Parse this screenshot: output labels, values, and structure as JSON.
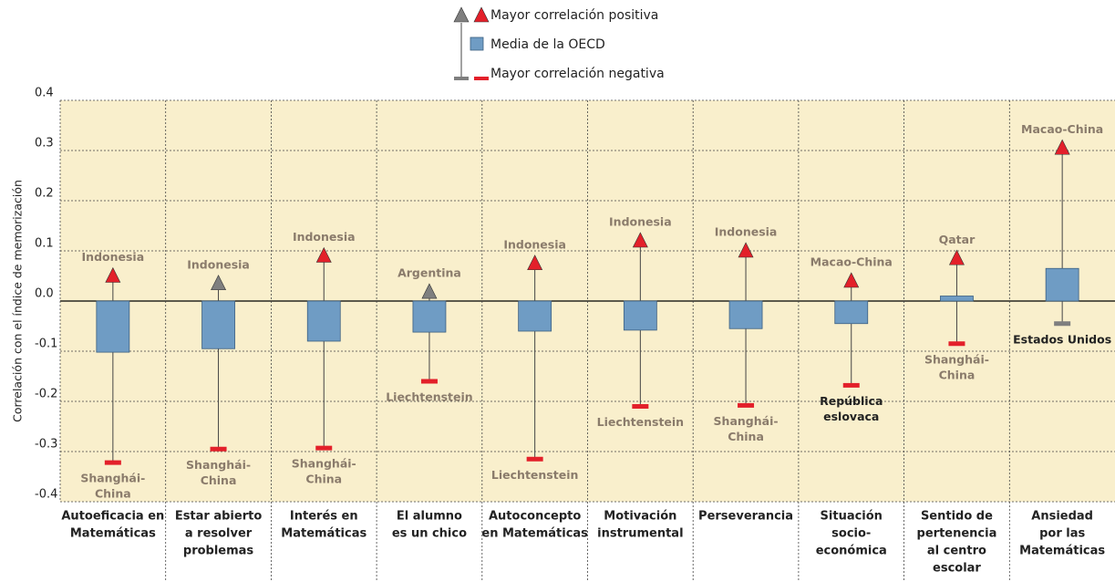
{
  "chart_data": {
    "type": "range",
    "y_label": "Correlación con el índice de memorización",
    "categories": [
      [
        "Autoeficacia en",
        "Matemáticas"
      ],
      [
        "Estar abierto",
        "a resolver",
        "problemas"
      ],
      [
        "Interés en",
        "Matemáticas"
      ],
      [
        "El alumno",
        "es un chico"
      ],
      [
        "Autoconcepto",
        "en Matemáticas"
      ],
      [
        "Motivación",
        "instrumental"
      ],
      [
        "Perseverancia"
      ],
      [
        "Situación",
        "socio-",
        "económica"
      ],
      [
        "Sentido de",
        "pertenencia",
        "al centro",
        "escolar"
      ],
      [
        "Ansiedad",
        "por las",
        "Matemáticas"
      ]
    ],
    "series": [
      {
        "name": "Mayor correlación positiva",
        "values": [
          0.05,
          0.035,
          0.09,
          0.018,
          0.075,
          0.12,
          0.1,
          0.04,
          0.085,
          0.305
        ],
        "colors": [
          "#e3202a",
          "#7f7f7f",
          "#e3202a",
          "#7f7f7f",
          "#e3202a",
          "#e3202a",
          "#e3202a",
          "#e3202a",
          "#e3202a",
          "#e3202a"
        ],
        "labels": [
          [
            "Indonesia"
          ],
          [
            "Indonesia"
          ],
          [
            "Indonesia"
          ],
          [
            "Argentina"
          ],
          [
            "Indonesia"
          ],
          [
            "Indonesia"
          ],
          [
            "Indonesia"
          ],
          [
            "Macao-China"
          ],
          [
            "Qatar"
          ],
          [
            "Macao-China"
          ]
        ]
      },
      {
        "name": "Media de la OECD",
        "color": "#6f9cc4",
        "values": [
          -0.102,
          -0.095,
          -0.08,
          -0.062,
          -0.06,
          -0.058,
          -0.055,
          -0.045,
          0.01,
          0.065
        ]
      },
      {
        "name": "Mayor correlación negativa",
        "values": [
          -0.322,
          -0.295,
          -0.293,
          -0.16,
          -0.315,
          -0.21,
          -0.208,
          -0.168,
          -0.085,
          -0.045
        ],
        "colors": [
          "#e3202a",
          "#e3202a",
          "#e3202a",
          "#e3202a",
          "#e3202a",
          "#e3202a",
          "#e3202a",
          "#e3202a",
          "#e3202a",
          "#7f7f7f"
        ],
        "labels": [
          [
            "Shanghái-",
            "China"
          ],
          [
            "Shanghái-",
            "China"
          ],
          [
            "Shanghái-",
            "China"
          ],
          [
            "Liechtenstein"
          ],
          [
            "Liechtenstein"
          ],
          [
            "Liechtenstein"
          ],
          [
            "Shanghái-",
            "China"
          ],
          [
            "República",
            "eslovaca"
          ],
          [
            "Shanghái-",
            "China"
          ],
          [
            "Estados Unidos"
          ]
        ],
        "label_colors": [
          "#8a7b6b",
          "#8a7b6b",
          "#8a7b6b",
          "#8a7b6b",
          "#8a7b6b",
          "#8a7b6b",
          "#8a7b6b",
          "#222222",
          "#8a7b6b",
          "#222222"
        ]
      }
    ],
    "ylim": [
      -0.4,
      0.4
    ],
    "yticks": [
      0.4,
      0.3,
      0.2,
      0.1,
      {
        "value": 0,
        "label": "0.0"
      },
      -0.1,
      -0.2,
      -0.3,
      -0.4
    ],
    "grid": true
  }
}
